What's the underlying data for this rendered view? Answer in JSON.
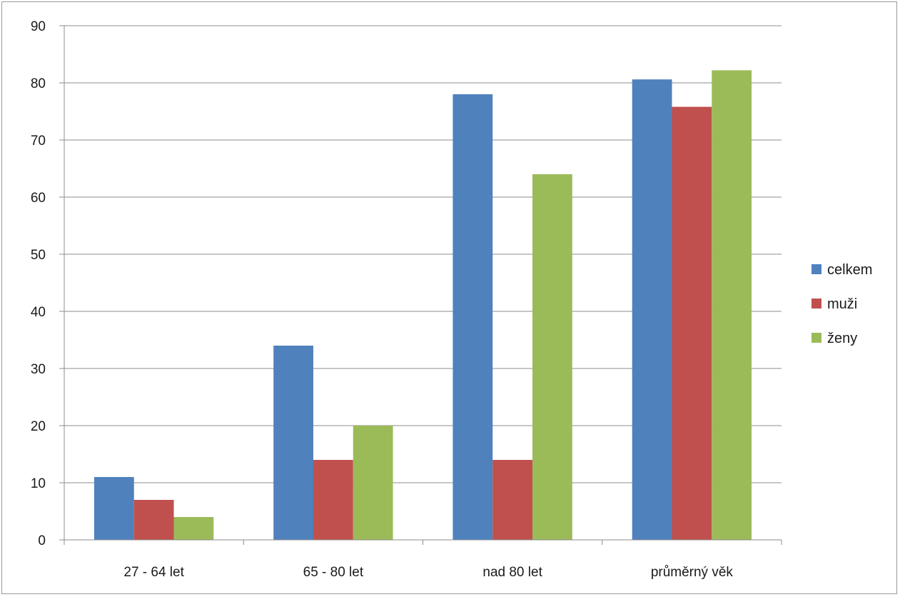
{
  "chart_data": {
    "type": "bar",
    "title": "",
    "xlabel": "",
    "ylabel": "",
    "categories": [
      "27 - 64 let",
      "65 - 80 let",
      "nad 80 let",
      "průměrný věk"
    ],
    "series": [
      {
        "name": "celkem",
        "color": "#4f81bd",
        "values": [
          11,
          34,
          78,
          80.6
        ]
      },
      {
        "name": "muži",
        "color": "#c0504d",
        "values": [
          7,
          14,
          14,
          75.8
        ]
      },
      {
        "name": "ženy",
        "color": "#9bbb59",
        "values": [
          4,
          20,
          64,
          82.2
        ]
      }
    ],
    "ylim": [
      0,
      90
    ],
    "yticks": [
      0,
      10,
      20,
      30,
      40,
      50,
      60,
      70,
      80,
      90
    ],
    "grid": true,
    "legend_position": "right"
  }
}
